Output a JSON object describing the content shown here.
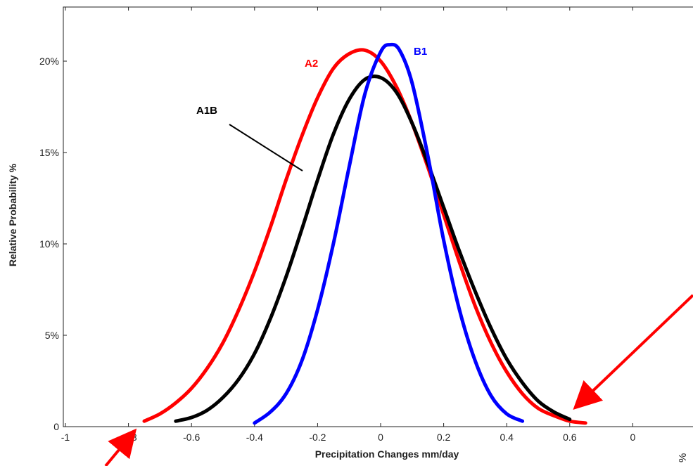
{
  "chart_data": {
    "type": "line",
    "xlabel": "Precipitation Changes mm/day",
    "ylabel": "Relative Probability %",
    "xlim": [
      -1,
      0.8
    ],
    "ylim": [
      0,
      23
    ],
    "grid": false,
    "x_ticks": [
      "-1",
      "-0.8",
      "-0.6",
      "-0.4",
      "-0.2",
      "0",
      "0.2",
      "0.4",
      "0.6",
      "0"
    ],
    "y_ticks": [
      {
        "value": 0,
        "label": "0"
      },
      {
        "value": 5,
        "label": "5%"
      },
      {
        "value": 10,
        "label": "10%"
      },
      {
        "value": 15,
        "label": "15%"
      },
      {
        "value": 20,
        "label": "20%"
      }
    ],
    "series": [
      {
        "name": "A2",
        "color": "#ff0000",
        "x": [
          -0.75,
          -0.7,
          -0.65,
          -0.6,
          -0.55,
          -0.5,
          -0.45,
          -0.4,
          -0.35,
          -0.3,
          -0.25,
          -0.2,
          -0.15,
          -0.1,
          -0.05,
          0.0,
          0.05,
          0.1,
          0.15,
          0.2,
          0.25,
          0.3,
          0.35,
          0.4,
          0.45,
          0.5,
          0.55,
          0.6,
          0.65
        ],
        "y": [
          0.3,
          0.7,
          1.3,
          2.1,
          3.2,
          4.6,
          6.4,
          8.5,
          10.9,
          13.5,
          15.9,
          18.0,
          19.6,
          20.4,
          20.6,
          20.0,
          18.6,
          16.6,
          14.2,
          11.6,
          9.0,
          6.6,
          4.6,
          3.0,
          1.8,
          1.0,
          0.6,
          0.3,
          0.2
        ]
      },
      {
        "name": "A1B",
        "color": "#000000",
        "x": [
          -0.65,
          -0.6,
          -0.55,
          -0.5,
          -0.45,
          -0.4,
          -0.35,
          -0.3,
          -0.25,
          -0.2,
          -0.15,
          -0.1,
          -0.05,
          0.0,
          0.05,
          0.1,
          0.15,
          0.2,
          0.25,
          0.3,
          0.35,
          0.4,
          0.45,
          0.5,
          0.55,
          0.6
        ],
        "y": [
          0.3,
          0.5,
          0.9,
          1.6,
          2.6,
          4.0,
          5.9,
          8.2,
          10.8,
          13.5,
          16.0,
          17.9,
          19.0,
          19.1,
          18.3,
          16.6,
          14.4,
          12.0,
          9.6,
          7.4,
          5.4,
          3.7,
          2.4,
          1.4,
          0.8,
          0.4
        ]
      },
      {
        "name": "B1",
        "color": "#0000ff",
        "x": [
          -0.4,
          -0.35,
          -0.3,
          -0.25,
          -0.2,
          -0.15,
          -0.1,
          -0.05,
          0.0,
          0.03,
          0.06,
          0.1,
          0.15,
          0.2,
          0.25,
          0.3,
          0.35,
          0.4,
          0.45
        ],
        "y": [
          0.2,
          0.8,
          1.8,
          3.6,
          6.4,
          10.0,
          14.2,
          18.2,
          20.5,
          20.9,
          20.6,
          18.8,
          14.8,
          10.2,
          6.4,
          3.6,
          1.7,
          0.7,
          0.3
        ]
      }
    ],
    "annotations": [
      "A2",
      "B1",
      "A1B"
    ]
  },
  "edge_text": "%"
}
